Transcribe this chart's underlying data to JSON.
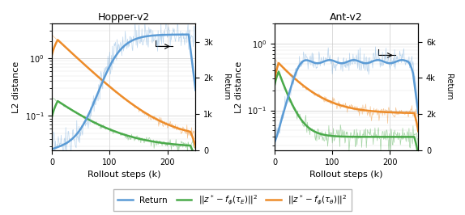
{
  "hopper_title": "Hopper-v2",
  "ant_title": "Ant-v2",
  "xlabel": "Rollout steps (k)",
  "ylabel_left": "L2 distance",
  "ylabel_right": "Return",
  "hopper_return_ylim": [
    0,
    3500
  ],
  "hopper_return_yticks": [
    0,
    1000,
    2000,
    3000
  ],
  "hopper_return_yticklabels": [
    "0",
    "1k",
    "2k",
    "3k"
  ],
  "ant_return_ylim": [
    0,
    7000
  ],
  "ant_return_yticks": [
    0,
    2000,
    4000,
    6000
  ],
  "ant_return_yticklabels": [
    "0",
    "2k",
    "4k",
    "6k"
  ],
  "l2_ylim_hopper": [
    0.025,
    4.0
  ],
  "l2_ylim_ant": [
    0.025,
    2.0
  ],
  "color_return": "#5b9bd5",
  "color_expert": "#4aaa4a",
  "color_policy": "#ed8c2a",
  "legend_labels": [
    "Return",
    "$||z^* - f_\\phi(\\tau_E)||^2$",
    "$||z^* - f_\\phi(\\tau_\\theta)||^2$"
  ],
  "figsize": [
    5.74,
    2.66
  ],
  "dpi": 100
}
